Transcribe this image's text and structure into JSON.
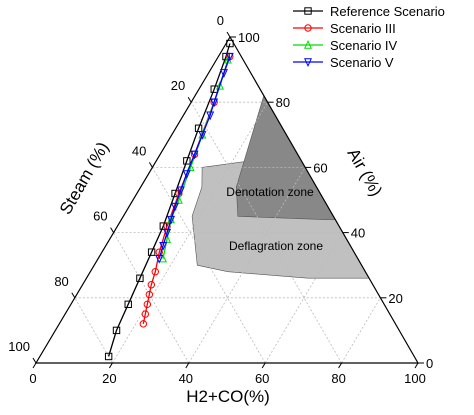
{
  "chart_data": {
    "type": "ternary",
    "axes": {
      "bottom": {
        "label": "H2+CO(%)",
        "ticks": [
          0,
          20,
          40,
          60,
          80,
          100
        ]
      },
      "right": {
        "label": "Air (%)",
        "ticks": [
          0,
          20,
          40,
          60,
          80,
          100
        ]
      },
      "left": {
        "label": "Steam (%)",
        "ticks": [
          0,
          20,
          40,
          60,
          80,
          100
        ]
      }
    },
    "grid": true,
    "legend_position": "top-right",
    "zones": [
      {
        "name": "Deflagration zone",
        "color": "#c0c0c0",
        "points": [
          {
            "fuel": 36,
            "air": 64,
            "steam": 0
          },
          {
            "fuel": 13,
            "air": 60,
            "steam": 27
          },
          {
            "fuel": 16,
            "air": 54,
            "steam": 30
          },
          {
            "fuel": 18,
            "air": 45,
            "steam": 37
          },
          {
            "fuel": 27,
            "air": 30,
            "steam": 43
          },
          {
            "fuel": 36,
            "air": 28,
            "steam": 36
          },
          {
            "fuel": 58,
            "air": 26,
            "steam": 16
          },
          {
            "fuel": 74,
            "air": 26,
            "steam": 0
          }
        ]
      },
      {
        "name": "Denotation zone",
        "color": "#888888",
        "points": [
          {
            "fuel": 18,
            "air": 82,
            "steam": 0
          },
          {
            "fuel": 25,
            "air": 54,
            "steam": 21
          },
          {
            "fuel": 30,
            "air": 45,
            "steam": 25
          },
          {
            "fuel": 53,
            "air": 44,
            "steam": 3
          },
          {
            "fuel": 56,
            "air": 44,
            "steam": 0
          }
        ]
      }
    ],
    "series": [
      {
        "name": "Reference Scenario",
        "color": "#000000",
        "marker": "square",
        "points": [
          {
            "fuel": 1,
            "air": 98,
            "steam": 1
          },
          {
            "fuel": 2,
            "air": 94,
            "steam": 4
          },
          {
            "fuel": 4,
            "air": 84,
            "steam": 12
          },
          {
            "fuel": 6,
            "air": 72,
            "steam": 22
          },
          {
            "fuel": 8,
            "air": 62,
            "steam": 30
          },
          {
            "fuel": 10,
            "air": 52,
            "steam": 38
          },
          {
            "fuel": 12,
            "air": 42,
            "steam": 46
          },
          {
            "fuel": 13,
            "air": 34,
            "steam": 53
          },
          {
            "fuel": 14,
            "air": 26,
            "steam": 60
          },
          {
            "fuel": 15,
            "air": 18,
            "steam": 67
          },
          {
            "fuel": 16,
            "air": 10,
            "steam": 74
          },
          {
            "fuel": 18,
            "air": 2,
            "steam": 80
          }
        ]
      },
      {
        "name": "Scenario III",
        "color": "#ff0000",
        "marker": "circle",
        "points": [
          {
            "fuel": 3,
            "air": 94,
            "steam": 3
          },
          {
            "fuel": 6,
            "air": 80,
            "steam": 14
          },
          {
            "fuel": 9,
            "air": 64,
            "steam": 27
          },
          {
            "fuel": 11,
            "air": 52,
            "steam": 37
          },
          {
            "fuel": 13,
            "air": 42,
            "steam": 45
          },
          {
            "fuel": 15,
            "air": 34,
            "steam": 51
          },
          {
            "fuel": 17,
            "air": 28,
            "steam": 55
          },
          {
            "fuel": 18,
            "air": 24,
            "steam": 58
          },
          {
            "fuel": 19,
            "air": 21,
            "steam": 60
          },
          {
            "fuel": 20,
            "air": 18,
            "steam": 62
          },
          {
            "fuel": 21,
            "air": 15,
            "steam": 64
          },
          {
            "fuel": 22,
            "air": 12,
            "steam": 66
          }
        ]
      },
      {
        "name": "Scenario IV",
        "color": "#00dd00",
        "marker": "triangle-up",
        "points": [
          {
            "fuel": 3,
            "air": 93,
            "steam": 4
          },
          {
            "fuel": 5,
            "air": 85,
            "steam": 10
          },
          {
            "fuel": 8,
            "air": 70,
            "steam": 22
          },
          {
            "fuel": 10,
            "air": 60,
            "steam": 30
          },
          {
            "fuel": 12,
            "air": 50,
            "steam": 38
          },
          {
            "fuel": 13,
            "air": 44,
            "steam": 43
          },
          {
            "fuel": 15,
            "air": 38,
            "steam": 47
          },
          {
            "fuel": 17,
            "air": 32,
            "steam": 51
          }
        ]
      },
      {
        "name": "Scenario V",
        "color": "#0000ff",
        "marker": "triangle-down",
        "points": [
          {
            "fuel": 3,
            "air": 94,
            "steam": 3
          },
          {
            "fuel": 4,
            "air": 89,
            "steam": 7
          },
          {
            "fuel": 6,
            "air": 80,
            "steam": 14
          },
          {
            "fuel": 7,
            "air": 76,
            "steam": 17
          },
          {
            "fuel": 8,
            "air": 70,
            "steam": 22
          },
          {
            "fuel": 9,
            "air": 64,
            "steam": 27
          },
          {
            "fuel": 10,
            "air": 58,
            "steam": 32
          },
          {
            "fuel": 11,
            "air": 53,
            "steam": 36
          },
          {
            "fuel": 12,
            "air": 48,
            "steam": 40
          },
          {
            "fuel": 13,
            "air": 44,
            "steam": 43
          },
          {
            "fuel": 14,
            "air": 40,
            "steam": 46
          },
          {
            "fuel": 15,
            "air": 36,
            "steam": 49
          },
          {
            "fuel": 16,
            "air": 32,
            "steam": 52
          }
        ]
      }
    ]
  }
}
